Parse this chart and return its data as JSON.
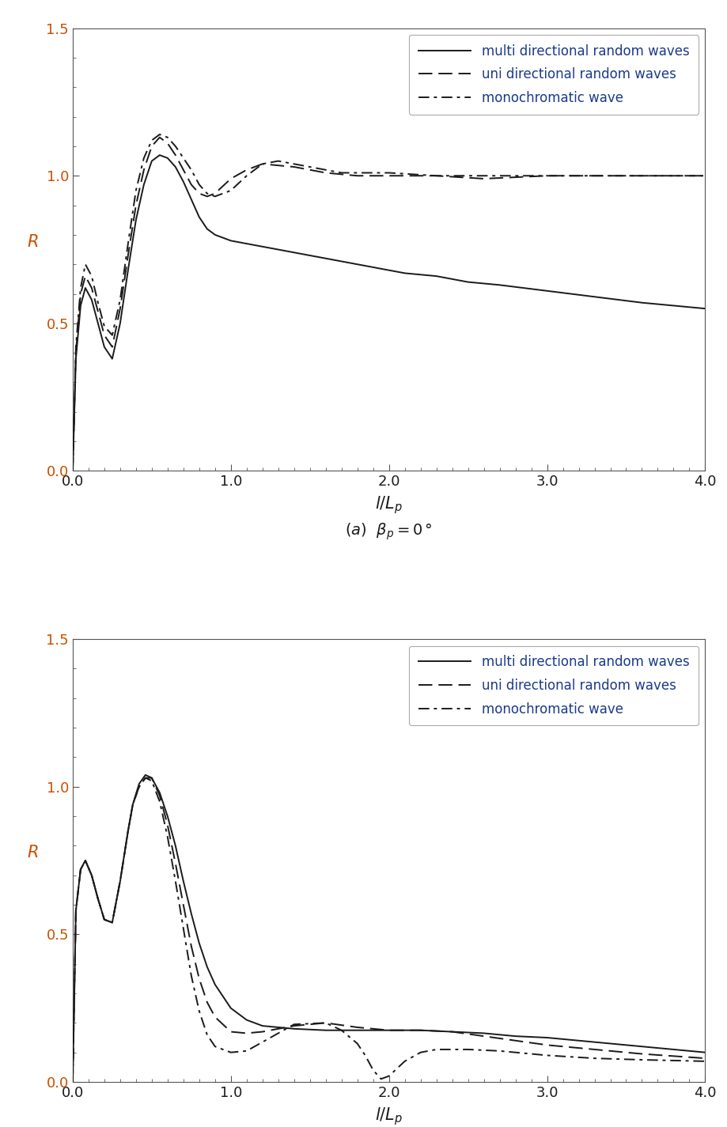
{
  "fig_width": 9.19,
  "fig_height": 14.25,
  "dpi": 100,
  "background_color": "#ffffff",
  "line_color": "#1a1a1a",
  "text_color": "#1a1a1a",
  "ylabel_color": "#c85000",
  "ytick_color": "#c85000",
  "legend_text_color": "#1a3a8a",
  "xlabel": "l/L_p",
  "ylabel": "R",
  "xlim": [
    0.0,
    4.0
  ],
  "ylim": [
    0.0,
    1.5
  ],
  "xticks": [
    0.0,
    1.0,
    2.0,
    3.0,
    4.0
  ],
  "yticks": [
    0.0,
    0.5,
    1.0,
    1.5
  ],
  "legend_labels": [
    "multi directional random waves",
    "uni directional random waves",
    "monochromatic wave"
  ],
  "plot_a": {
    "multi_x": [
      0.0,
      0.02,
      0.05,
      0.08,
      0.12,
      0.16,
      0.2,
      0.25,
      0.3,
      0.35,
      0.4,
      0.45,
      0.5,
      0.55,
      0.6,
      0.65,
      0.7,
      0.75,
      0.8,
      0.85,
      0.9,
      1.0,
      1.1,
      1.2,
      1.3,
      1.5,
      1.7,
      1.9,
      2.1,
      2.3,
      2.5,
      2.7,
      3.0,
      3.3,
      3.6,
      4.0
    ],
    "multi_y": [
      0.0,
      0.38,
      0.56,
      0.62,
      0.58,
      0.5,
      0.42,
      0.38,
      0.5,
      0.68,
      0.85,
      0.97,
      1.05,
      1.07,
      1.06,
      1.03,
      0.98,
      0.92,
      0.86,
      0.82,
      0.8,
      0.78,
      0.77,
      0.76,
      0.75,
      0.73,
      0.71,
      0.69,
      0.67,
      0.66,
      0.64,
      0.63,
      0.61,
      0.59,
      0.57,
      0.55
    ],
    "uni_x": [
      0.0,
      0.02,
      0.05,
      0.08,
      0.12,
      0.16,
      0.2,
      0.25,
      0.3,
      0.35,
      0.4,
      0.45,
      0.5,
      0.55,
      0.6,
      0.65,
      0.7,
      0.75,
      0.8,
      0.85,
      0.9,
      1.0,
      1.1,
      1.2,
      1.4,
      1.6,
      1.8,
      2.0,
      2.3,
      2.6,
      3.0,
      3.5,
      4.0
    ],
    "uni_y": [
      0.0,
      0.4,
      0.6,
      0.66,
      0.62,
      0.54,
      0.46,
      0.42,
      0.55,
      0.73,
      0.9,
      1.02,
      1.1,
      1.13,
      1.11,
      1.07,
      1.02,
      0.97,
      0.94,
      0.93,
      0.94,
      0.99,
      1.02,
      1.04,
      1.03,
      1.01,
      1.0,
      1.0,
      1.0,
      0.99,
      1.0,
      1.0,
      1.0
    ],
    "mono_x": [
      0.0,
      0.02,
      0.05,
      0.08,
      0.12,
      0.16,
      0.2,
      0.25,
      0.3,
      0.35,
      0.4,
      0.45,
      0.5,
      0.55,
      0.6,
      0.65,
      0.7,
      0.75,
      0.8,
      0.85,
      0.9,
      1.0,
      1.1,
      1.2,
      1.3,
      1.4,
      1.5,
      1.6,
      1.7,
      1.8,
      1.9,
      2.0,
      2.3,
      2.6,
      3.0,
      3.5,
      4.0
    ],
    "mono_y": [
      0.0,
      0.42,
      0.62,
      0.7,
      0.66,
      0.57,
      0.49,
      0.46,
      0.58,
      0.77,
      0.95,
      1.06,
      1.12,
      1.14,
      1.13,
      1.1,
      1.06,
      1.02,
      0.97,
      0.94,
      0.93,
      0.95,
      1.0,
      1.04,
      1.05,
      1.04,
      1.03,
      1.02,
      1.01,
      1.01,
      1.01,
      1.01,
      1.0,
      1.0,
      1.0,
      1.0,
      1.0
    ]
  },
  "plot_b": {
    "multi_x": [
      0.0,
      0.02,
      0.05,
      0.08,
      0.12,
      0.16,
      0.2,
      0.25,
      0.3,
      0.35,
      0.38,
      0.42,
      0.46,
      0.5,
      0.55,
      0.6,
      0.65,
      0.7,
      0.75,
      0.8,
      0.85,
      0.9,
      1.0,
      1.1,
      1.2,
      1.4,
      1.6,
      1.8,
      2.0,
      2.2,
      2.4,
      2.6,
      2.8,
      3.0,
      3.3,
      3.6,
      4.0
    ],
    "multi_y": [
      0.0,
      0.58,
      0.72,
      0.75,
      0.7,
      0.62,
      0.55,
      0.54,
      0.68,
      0.85,
      0.94,
      1.01,
      1.04,
      1.03,
      0.98,
      0.9,
      0.8,
      0.68,
      0.57,
      0.47,
      0.39,
      0.33,
      0.25,
      0.21,
      0.19,
      0.18,
      0.175,
      0.175,
      0.175,
      0.175,
      0.17,
      0.165,
      0.155,
      0.15,
      0.135,
      0.12,
      0.1
    ],
    "uni_x": [
      0.0,
      0.02,
      0.05,
      0.08,
      0.12,
      0.16,
      0.2,
      0.25,
      0.3,
      0.35,
      0.38,
      0.42,
      0.46,
      0.5,
      0.55,
      0.6,
      0.65,
      0.7,
      0.75,
      0.8,
      0.85,
      0.9,
      1.0,
      1.1,
      1.2,
      1.4,
      1.6,
      1.8,
      2.0,
      2.1,
      2.2,
      2.4,
      2.6,
      2.8,
      3.0,
      3.3,
      3.6,
      4.0
    ],
    "uni_y": [
      0.0,
      0.58,
      0.72,
      0.75,
      0.7,
      0.62,
      0.55,
      0.54,
      0.68,
      0.85,
      0.94,
      1.0,
      1.03,
      1.03,
      0.97,
      0.87,
      0.74,
      0.6,
      0.46,
      0.35,
      0.27,
      0.22,
      0.17,
      0.165,
      0.17,
      0.19,
      0.2,
      0.185,
      0.175,
      0.175,
      0.175,
      0.17,
      0.155,
      0.14,
      0.125,
      0.11,
      0.095,
      0.08
    ],
    "mono_x": [
      0.0,
      0.02,
      0.05,
      0.08,
      0.12,
      0.16,
      0.2,
      0.25,
      0.3,
      0.35,
      0.38,
      0.42,
      0.46,
      0.5,
      0.55,
      0.6,
      0.65,
      0.7,
      0.75,
      0.8,
      0.85,
      0.9,
      1.0,
      1.1,
      1.2,
      1.4,
      1.6,
      1.7,
      1.8,
      1.85,
      1.9,
      1.95,
      2.0,
      2.1,
      2.2,
      2.3,
      2.5,
      2.7,
      3.0,
      3.3,
      3.6,
      4.0
    ],
    "mono_y": [
      0.0,
      0.58,
      0.72,
      0.75,
      0.7,
      0.62,
      0.55,
      0.54,
      0.68,
      0.85,
      0.94,
      1.0,
      1.03,
      1.02,
      0.95,
      0.83,
      0.68,
      0.52,
      0.36,
      0.24,
      0.16,
      0.12,
      0.1,
      0.105,
      0.135,
      0.195,
      0.2,
      0.175,
      0.13,
      0.09,
      0.04,
      0.01,
      0.02,
      0.07,
      0.1,
      0.11,
      0.11,
      0.105,
      0.09,
      0.08,
      0.075,
      0.07
    ]
  }
}
